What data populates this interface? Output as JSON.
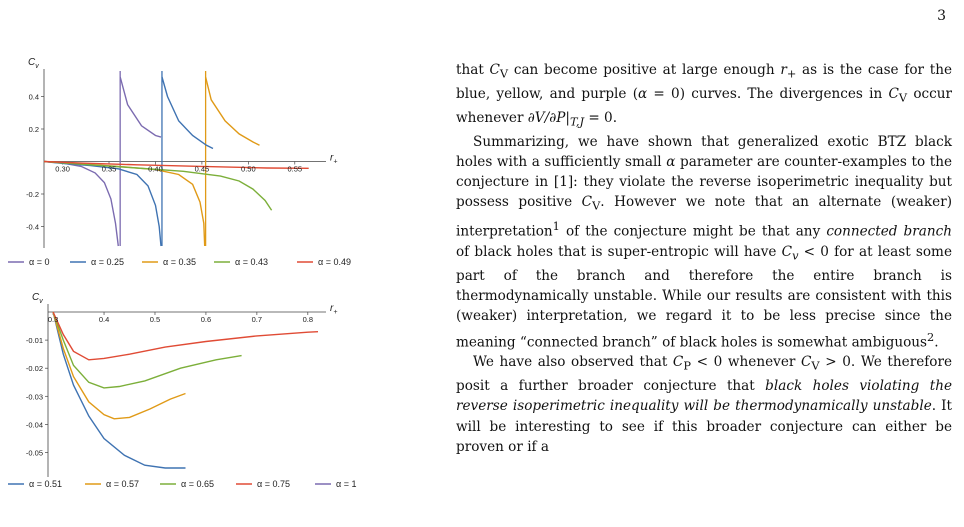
{
  "page_number": "3",
  "charts": [
    {
      "type": "line",
      "ylabel": "C",
      "ylabel_sub": "v",
      "xlabel": "r",
      "xlabel_sub": "+",
      "xlim": [
        0.28,
        0.575
      ],
      "ylim": [
        -0.52,
        0.52
      ],
      "x_ticks": [
        "0.30",
        "0.35",
        "0.40",
        "0.45",
        "0.50",
        "0.55"
      ],
      "y_ticks": [
        "0.4",
        "0.2",
        "-0.2",
        "-0.4"
      ],
      "y_tick_values": [
        0.4,
        0.2,
        -0.2,
        -0.4
      ],
      "x_tick_values": [
        0.3,
        0.35,
        0.4,
        0.45,
        0.5,
        0.55
      ],
      "vertical_lines": [
        {
          "x": 0.362,
          "color": "#7b6bb0"
        },
        {
          "x": 0.407,
          "color": "#3f73b2"
        },
        {
          "x": 0.454,
          "color": "#e09a17"
        }
      ],
      "series": [
        {
          "name": "α = 0",
          "color": "#7b6bb0",
          "upper": [
            [
              0.362,
              0.52
            ],
            [
              0.37,
              0.35
            ],
            [
              0.385,
              0.22
            ],
            [
              0.4,
              0.16
            ],
            [
              0.406,
              0.15
            ]
          ],
          "lower": [
            [
              0.28,
              0
            ],
            [
              0.3,
              -0.01
            ],
            [
              0.32,
              -0.03
            ],
            [
              0.335,
              -0.07
            ],
            [
              0.345,
              -0.13
            ],
            [
              0.352,
              -0.23
            ],
            [
              0.357,
              -0.38
            ],
            [
              0.36,
              -0.52
            ]
          ]
        },
        {
          "name": "α = 0.25",
          "color": "#3f73b2",
          "upper": [
            [
              0.407,
              0.52
            ],
            [
              0.413,
              0.4
            ],
            [
              0.425,
              0.25
            ],
            [
              0.44,
              0.16
            ],
            [
              0.455,
              0.1
            ],
            [
              0.462,
              0.08
            ]
          ],
          "lower": [
            [
              0.28,
              0
            ],
            [
              0.3,
              -0.012
            ],
            [
              0.33,
              -0.025
            ],
            [
              0.36,
              -0.045
            ],
            [
              0.38,
              -0.08
            ],
            [
              0.392,
              -0.15
            ],
            [
              0.4,
              -0.27
            ],
            [
              0.404,
              -0.4
            ],
            [
              0.406,
              -0.52
            ]
          ]
        },
        {
          "name": "α = 0.35",
          "color": "#e09a17",
          "upper": [
            [
              0.454,
              0.52
            ],
            [
              0.46,
              0.38
            ],
            [
              0.475,
              0.25
            ],
            [
              0.49,
              0.17
            ],
            [
              0.505,
              0.12
            ],
            [
              0.512,
              0.1
            ]
          ],
          "lower": [
            [
              0.28,
              0
            ],
            [
              0.32,
              -0.015
            ],
            [
              0.36,
              -0.03
            ],
            [
              0.4,
              -0.05
            ],
            [
              0.425,
              -0.08
            ],
            [
              0.44,
              -0.14
            ],
            [
              0.448,
              -0.25
            ],
            [
              0.452,
              -0.38
            ],
            [
              0.453,
              -0.52
            ]
          ]
        },
        {
          "name": "α = 0.43",
          "color": "#7caf3a",
          "points": [
            [
              0.28,
              0
            ],
            [
              0.33,
              -0.02
            ],
            [
              0.38,
              -0.04
            ],
            [
              0.43,
              -0.06
            ],
            [
              0.47,
              -0.09
            ],
            [
              0.49,
              -0.12
            ],
            [
              0.505,
              -0.17
            ],
            [
              0.518,
              -0.24
            ],
            [
              0.525,
              -0.3
            ]
          ]
        },
        {
          "name": "α = 0.49",
          "color": "#e04b35",
          "points": [
            [
              0.28,
              0
            ],
            [
              0.32,
              -0.01
            ],
            [
              0.38,
              -0.02
            ],
            [
              0.45,
              -0.03
            ],
            [
              0.52,
              -0.04
            ],
            [
              0.565,
              -0.042
            ]
          ]
        }
      ]
    },
    {
      "type": "line",
      "ylabel": "C",
      "ylabel_sub": "v",
      "xlabel": "r",
      "xlabel_sub": "+",
      "xlim": [
        0.29,
        0.82
      ],
      "ylim": [
        -0.058,
        0.0
      ],
      "x_ticks": [
        "0.3",
        "0.4",
        "0.5",
        "0.6",
        "0.7",
        "0.8"
      ],
      "x_tick_values": [
        0.3,
        0.4,
        0.5,
        0.6,
        0.7,
        0.8
      ],
      "y_ticks": [
        "-0.01",
        "-0.02",
        "-0.03",
        "-0.04",
        "-0.05"
      ],
      "y_tick_values": [
        -0.01,
        -0.02,
        -0.03,
        -0.04,
        -0.05
      ],
      "series": [
        {
          "name": "α = 0.51",
          "color": "#3f73b2",
          "points": [
            [
              0.3,
              0
            ],
            [
              0.32,
              -0.015
            ],
            [
              0.34,
              -0.026
            ],
            [
              0.37,
              -0.037
            ],
            [
              0.4,
              -0.045
            ],
            [
              0.44,
              -0.051
            ],
            [
              0.48,
              -0.0545
            ],
            [
              0.52,
              -0.0555
            ],
            [
              0.56,
              -0.0555
            ]
          ]
        },
        {
          "name": "α = 0.57",
          "color": "#e09a17",
          "points": [
            [
              0.3,
              0
            ],
            [
              0.32,
              -0.013
            ],
            [
              0.34,
              -0.023
            ],
            [
              0.37,
              -0.032
            ],
            [
              0.4,
              -0.0365
            ],
            [
              0.42,
              -0.038
            ],
            [
              0.45,
              -0.0375
            ],
            [
              0.49,
              -0.0345
            ],
            [
              0.53,
              -0.031
            ],
            [
              0.56,
              -0.029
            ]
          ]
        },
        {
          "name": "α = 0.65",
          "color": "#7caf3a",
          "points": [
            [
              0.3,
              0
            ],
            [
              0.32,
              -0.01
            ],
            [
              0.34,
              -0.019
            ],
            [
              0.37,
              -0.025
            ],
            [
              0.4,
              -0.027
            ],
            [
              0.43,
              -0.0265
            ],
            [
              0.48,
              -0.0245
            ],
            [
              0.55,
              -0.02
            ],
            [
              0.62,
              -0.017
            ],
            [
              0.67,
              -0.0155
            ]
          ]
        },
        {
          "name": "α = 0.75",
          "color": "#e04b35",
          "points": [
            [
              0.3,
              0
            ],
            [
              0.32,
              -0.008
            ],
            [
              0.34,
              -0.014
            ],
            [
              0.37,
              -0.017
            ],
            [
              0.4,
              -0.0165
            ],
            [
              0.45,
              -0.015
            ],
            [
              0.52,
              -0.0125
            ],
            [
              0.6,
              -0.0105
            ],
            [
              0.7,
              -0.0085
            ],
            [
              0.8,
              -0.0072
            ],
            [
              0.82,
              -0.007
            ]
          ]
        },
        {
          "name": "α = 1",
          "color": "#7b6bb0",
          "points": []
        }
      ]
    }
  ],
  "text": {
    "p1a": "that ",
    "p1b": "C",
    "p1c": "V",
    "p1d": " can become positive at large enough ",
    "p1e": "r",
    "p1f": "+",
    "p1g": " as is the case for the blue, yellow, and purple (",
    "p1h": "α",
    "p1i": " = 0) curves. The divergences in ",
    "p1j": "C",
    "p1k": "V",
    "p1l": " occur whenever ",
    "p1m": "∂V/∂P|",
    "p1n": "T,J",
    "p1o": " = 0.",
    "p2a": "Summarizing, we have shown that generalized exotic BTZ black holes with a sufficiently small ",
    "p2b": "α",
    "p2c": " parameter are counter-examples to the conjecture in [1]: they violate the reverse isoperimetric inequality but possess positive ",
    "p2d": "C",
    "p2e": "V",
    "p2f": ". However we note that an alternate (weaker) interpretation",
    "p2g": "1",
    "p2h": " of the conjecture might be that any ",
    "p2i": "connected branch",
    "p2j": " of black holes that is super-entropic will have ",
    "p2k": "C",
    "p2l": "v",
    "p2m": " < 0 for at least some part of the branch and therefore the entire branch is thermodynamically unstable. While our results are consistent with this (weaker) interpretation, we regard it to be less precise since the meaning “connected branch” of black holes is somewhat ambiguous",
    "p2n": "2",
    "p2o": ".",
    "p3a": "We have also observed that ",
    "p3b": "C",
    "p3c": "P",
    "p3d": " < 0 whenever ",
    "p3e": "C",
    "p3f": "V",
    "p3g": " > 0. We therefore posit a further broader conjecture that ",
    "p3h": "black holes violating the reverse isoperimetric inequality will be thermodynamically unstable",
    "p3i": ". It will be interesting to see if this broader conjecture can either be proven or if a"
  }
}
